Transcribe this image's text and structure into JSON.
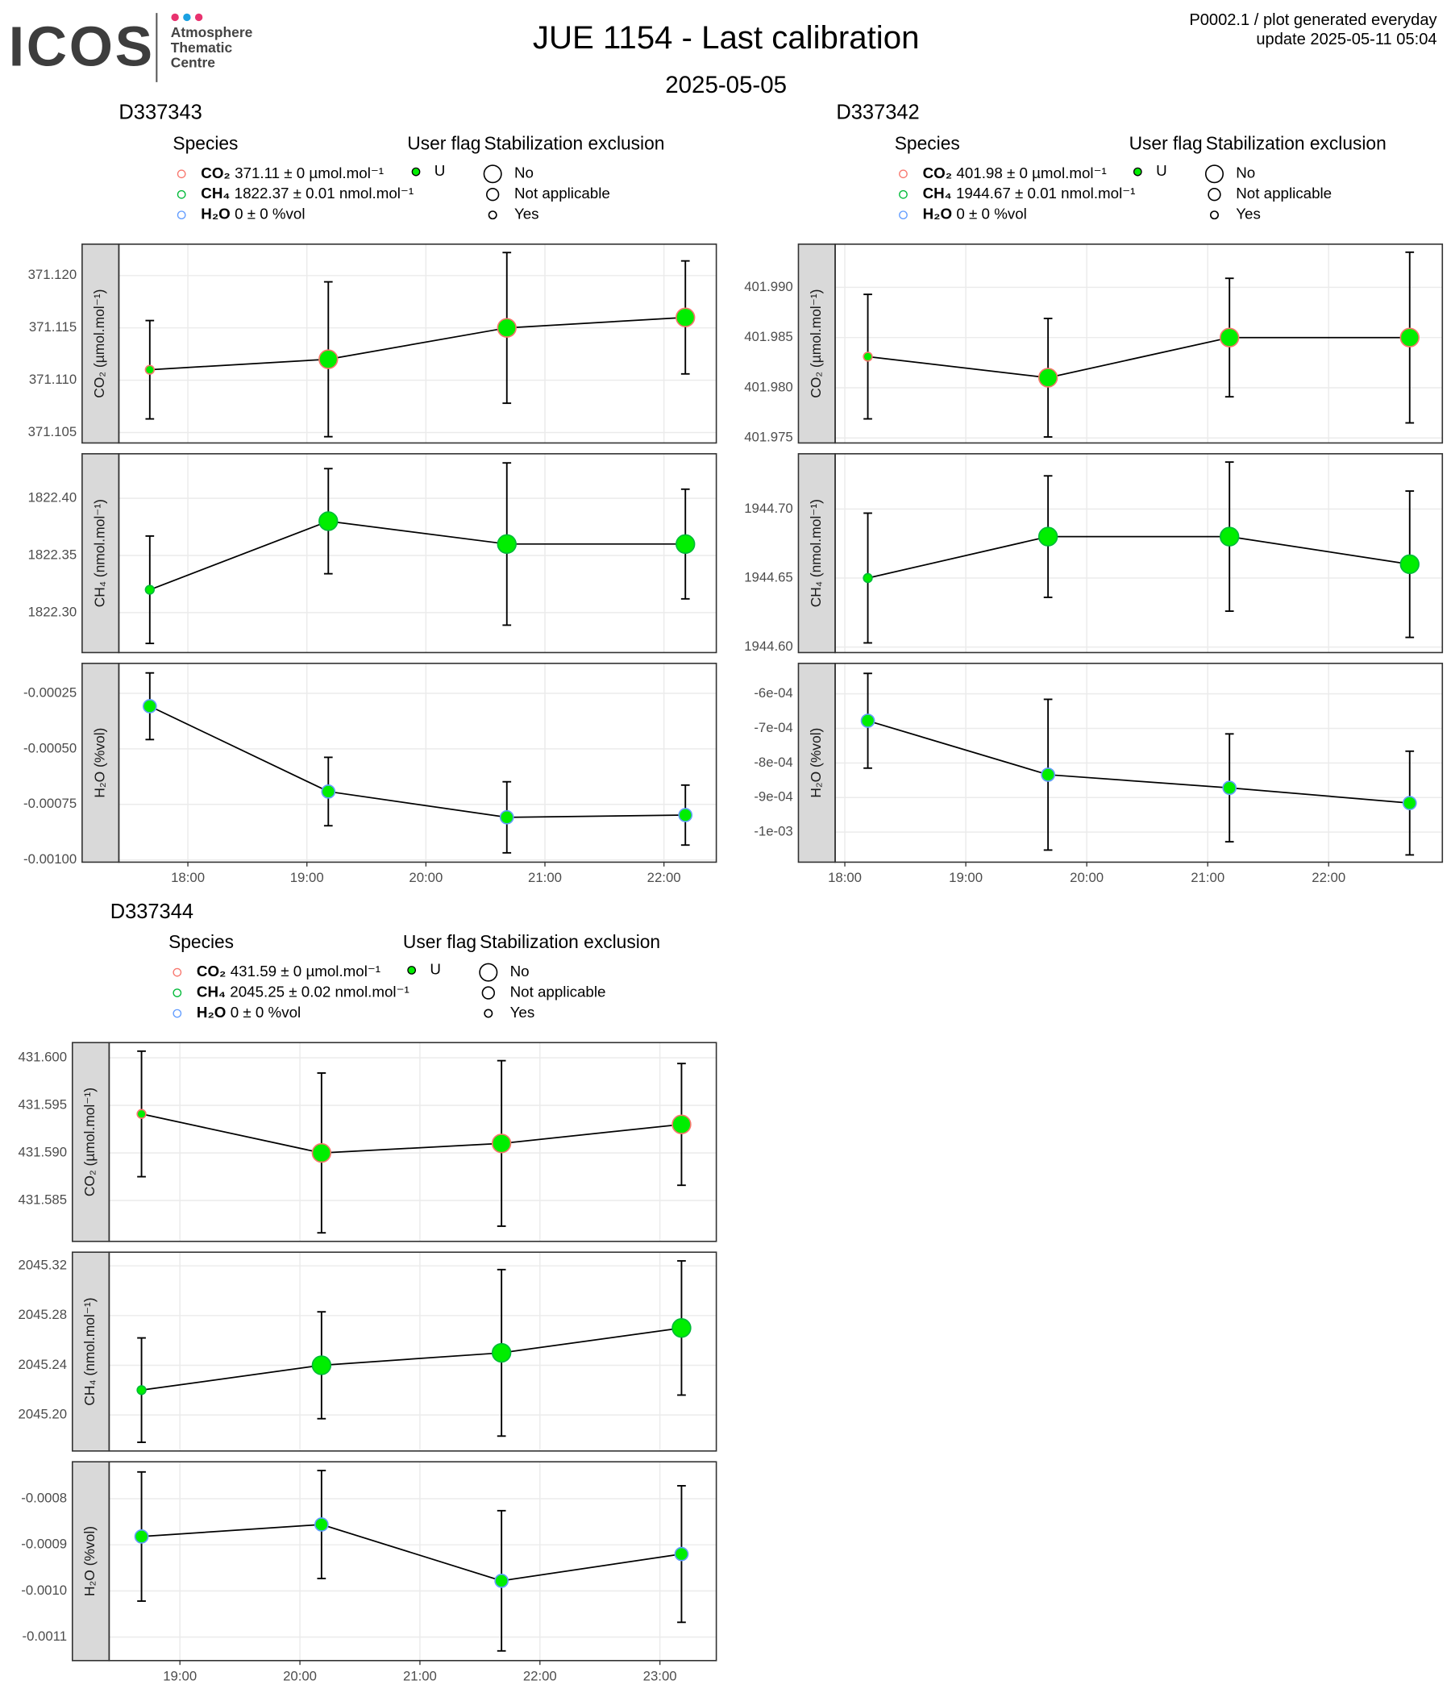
{
  "header": {
    "logo": "ICOS",
    "centre": [
      "Atmosphere",
      "Thematic",
      "Centre"
    ],
    "title": "JUE 1154 - Last calibration",
    "subtitle": "2025-05-05",
    "note": [
      "P0002.1 / plot generated everyday",
      "update  2025-05-11 05:04"
    ]
  },
  "chart_data": [
    {
      "type": "line",
      "title": "D337343",
      "legend": {
        "species_title": "Species",
        "species": [
          {
            "name": "CO₂",
            "label": "371.11 ± 0 µmol.mol⁻¹",
            "color": "#f8766d"
          },
          {
            "name": "CH₄",
            "label": "1822.37 ± 0.01 nmol.mol⁻¹",
            "color": "#00ba38"
          },
          {
            "name": "H₂O",
            "label": "0 ± 0 %vol",
            "color": "#619cff"
          }
        ],
        "flag_title": "User flag",
        "flags": [
          {
            "name": "U",
            "color": "#00ee00"
          }
        ],
        "size_title": "Stabilization exclusion",
        "sizes": [
          "No",
          "Not applicable",
          "Yes"
        ]
      },
      "x": [
        17.68,
        19.18,
        20.68,
        22.18
      ],
      "xlim": [
        17.42,
        22.44
      ],
      "xticks": [
        {
          "value": 18,
          "label": "18:00"
        },
        {
          "value": 19,
          "label": "19:00"
        },
        {
          "value": 20,
          "label": "20:00"
        },
        {
          "value": 21,
          "label": "21:00"
        },
        {
          "value": 22,
          "label": "22:00"
        }
      ],
      "grid": true,
      "facets": [
        {
          "ylabel": "CO₂ (µmol.mol⁻¹)",
          "ylim": [
            371.104,
            371.123
          ],
          "yticks": [
            371.105,
            {
              "value": 371.11,
              "label": "371.110"
            },
            371.115,
            {
              "value": 371.12,
              "label": "371.120"
            }
          ],
          "values": [
            371.111,
            371.112,
            371.115,
            371.116
          ],
          "errors": [
            0.0047,
            0.0074,
            0.0072,
            0.0054
          ],
          "exclusion": [
            "Yes",
            "No",
            "No",
            "No"
          ]
        },
        {
          "ylabel": "CH₄ (nmol.mol⁻¹)",
          "ylim": [
            1822.265,
            1822.439
          ],
          "yticks": [
            {
              "value": 1822.3,
              "label": "1822.30"
            },
            1822.35,
            {
              "value": 1822.4,
              "label": "1822.40"
            }
          ],
          "values": [
            1822.32,
            1822.38,
            1822.36,
            1822.36
          ],
          "errors": [
            0.047,
            0.046,
            0.071,
            0.048
          ],
          "exclusion": [
            "Yes",
            "No",
            "No",
            "No"
          ]
        },
        {
          "ylabel": "H₂O (%vol)",
          "ylim": [
            -0.00101,
            -0.000115
          ],
          "yticks": [
            {
              "value": -0.001,
              "label": "-0.00100"
            },
            -0.00075,
            {
              "value": -0.0005,
              "label": "-0.00050"
            },
            -0.00025
          ],
          "values": [
            -0.000308,
            -0.000692,
            -0.000808,
            -0.000798
          ],
          "errors": [
            0.00015,
            0.000154,
            0.00016,
            0.000135
          ],
          "exclusion": [
            "Not applicable",
            "Not applicable",
            "Not applicable",
            "Not applicable"
          ]
        }
      ]
    },
    {
      "type": "line",
      "title": "D337342",
      "legend": {
        "species_title": "Species",
        "species": [
          {
            "name": "CO₂",
            "label": "401.98 ± 0 µmol.mol⁻¹",
            "color": "#f8766d"
          },
          {
            "name": "CH₄",
            "label": "1944.67 ± 0.01 nmol.mol⁻¹",
            "color": "#00ba38"
          },
          {
            "name": "H₂O",
            "label": "0 ± 0 %vol",
            "color": "#619cff"
          }
        ],
        "flag_title": "User flag",
        "flags": [
          {
            "name": "U",
            "color": "#00ee00"
          }
        ],
        "size_title": "Stabilization exclusion",
        "sizes": [
          "No",
          "Not applicable",
          "Yes"
        ]
      },
      "x": [
        18.19,
        19.68,
        21.18,
        22.67
      ],
      "xlim": [
        17.92,
        22.94
      ],
      "xticks": [
        {
          "value": 18,
          "label": "18:00"
        },
        {
          "value": 19,
          "label": "19:00"
        },
        {
          "value": 20,
          "label": "20:00"
        },
        {
          "value": 21,
          "label": "21:00"
        },
        {
          "value": 22,
          "label": "22:00"
        }
      ],
      "grid": true,
      "facets": [
        {
          "ylabel": "CO₂ (µmol.mol⁻¹)",
          "ylim": [
            401.9745,
            401.9943
          ],
          "yticks": [
            401.975,
            {
              "value": 401.98,
              "label": "401.980"
            },
            401.985,
            {
              "value": 401.99,
              "label": "401.990"
            }
          ],
          "values": [
            401.9831,
            401.981,
            401.985,
            401.985
          ],
          "errors": [
            0.0062,
            0.0059,
            0.0059,
            0.0085
          ],
          "exclusion": [
            "Yes",
            "No",
            "No",
            "No"
          ]
        },
        {
          "ylabel": "CH₄ (nmol.mol⁻¹)",
          "ylim": [
            1944.596,
            1944.74
          ],
          "yticks": [
            {
              "value": 1944.6,
              "label": "1944.60"
            },
            1944.65,
            {
              "value": 1944.7,
              "label": "1944.70"
            }
          ],
          "values": [
            1944.65,
            1944.68,
            1944.68,
            1944.66
          ],
          "errors": [
            0.047,
            0.044,
            0.054,
            0.053
          ],
          "exclusion": [
            "Yes",
            "No",
            "No",
            "No"
          ]
        },
        {
          "ylabel": "H₂O (%vol)",
          "ylim": [
            -0.001087,
            -0.000512
          ],
          "yticks": [
            {
              "value": -0.001,
              "label": "-1e-03"
            },
            {
              "value": -0.0009,
              "label": "-9e-04"
            },
            {
              "value": -0.0008,
              "label": "-8e-04"
            },
            {
              "value": -0.0007,
              "label": "-7e-04"
            },
            {
              "value": -0.0006,
              "label": "-6e-04"
            }
          ],
          "values": [
            -0.000678,
            -0.000834,
            -0.000872,
            -0.000916
          ],
          "errors": [
            0.000137,
            0.000218,
            0.000156,
            0.00015
          ],
          "exclusion": [
            "Not applicable",
            "Not applicable",
            "Not applicable",
            "Not applicable"
          ]
        }
      ]
    },
    {
      "type": "line",
      "title": "D337344",
      "legend": {
        "species_title": "Species",
        "species": [
          {
            "name": "CO₂",
            "label": "431.59 ± 0 µmol.mol⁻¹",
            "color": "#f8766d"
          },
          {
            "name": "CH₄",
            "label": "2045.25 ± 0.02 nmol.mol⁻¹",
            "color": "#00ba38"
          },
          {
            "name": "H₂O",
            "label": "0 ± 0 %vol",
            "color": "#619cff"
          }
        ],
        "flag_title": "User flag",
        "flags": [
          {
            "name": "U",
            "color": "#00ee00"
          }
        ],
        "size_title": "Stabilization exclusion",
        "sizes": [
          "No",
          "Not applicable",
          "Yes"
        ]
      },
      "x": [
        18.68,
        20.18,
        21.68,
        23.18
      ],
      "xlim": [
        18.41,
        23.47
      ],
      "xticks": [
        {
          "value": 19,
          "label": "19:00"
        },
        {
          "value": 20,
          "label": "20:00"
        },
        {
          "value": 21,
          "label": "21:00"
        },
        {
          "value": 22,
          "label": "22:00"
        },
        {
          "value": 23,
          "label": "23:00"
        }
      ],
      "grid": true,
      "facets": [
        {
          "ylabel": "CO₂ (µmol.mol⁻¹)",
          "ylim": [
            431.5807,
            431.6016
          ],
          "yticks": [
            431.585,
            {
              "value": 431.59,
              "label": "431.590"
            },
            431.595,
            {
              "value": 431.6,
              "label": "431.600"
            }
          ],
          "values": [
            431.5941,
            431.59,
            431.591,
            431.593
          ],
          "errors": [
            0.0066,
            0.0084,
            0.0087,
            0.0064
          ],
          "exclusion": [
            "Yes",
            "No",
            "No",
            "No"
          ]
        },
        {
          "ylabel": "CH₄ (nmol.mol⁻¹)",
          "ylim": [
            2045.171,
            2045.331
          ],
          "yticks": [
            {
              "value": 2045.2,
              "label": "2045.20"
            },
            2045.24,
            2045.28,
            2045.32
          ],
          "values": [
            2045.22,
            2045.24,
            2045.25,
            2045.27
          ],
          "errors": [
            0.042,
            0.043,
            0.067,
            0.054
          ],
          "exclusion": [
            "Yes",
            "No",
            "No",
            "No"
          ]
        },
        {
          "ylabel": "H₂O (%vol)",
          "ylim": [
            -0.001151,
            -0.00072
          ],
          "yticks": [
            -0.0011,
            {
              "value": -0.001,
              "label": "-0.0010"
            },
            -0.0009,
            -0.0008
          ],
          "values": [
            -0.000882,
            -0.000856,
            -0.000978,
            -0.00092
          ],
          "errors": [
            0.00014,
            0.000117,
            0.000152,
            0.000148
          ],
          "exclusion": [
            "Not applicable",
            "Not applicable",
            "Not applicable",
            "Not applicable"
          ]
        }
      ]
    }
  ]
}
